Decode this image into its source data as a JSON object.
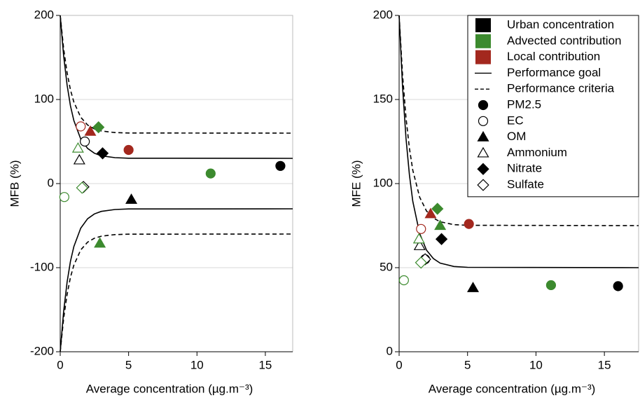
{
  "chart_data": [
    {
      "type": "scatter",
      "ylabel": "MFB (%)",
      "xlabel": "Average concentration (µg.m⁻³)",
      "xlim": [
        0,
        17
      ],
      "ylim": [
        -200,
        200
      ],
      "xticks": [
        0,
        5,
        10,
        15
      ],
      "yticks": [
        -200,
        -100,
        0,
        100,
        200
      ],
      "grid": true,
      "lines": [
        {
          "style": "solid",
          "color": "#000000",
          "x": [
            0,
            0.25,
            0.5,
            0.75,
            1,
            1.5,
            2,
            2.5,
            3,
            4,
            5,
            17
          ],
          "values": [
            200,
            151.8,
            117.3,
            92.5,
            74.8,
            53.0,
            41.8,
            36.1,
            33.1,
            30.8,
            30.2,
            30
          ]
        },
        {
          "style": "solid",
          "color": "#000000",
          "x": [
            0,
            0.25,
            0.5,
            0.75,
            1,
            1.5,
            2,
            2.5,
            3,
            4,
            5,
            17
          ],
          "values": [
            -200,
            -151.8,
            -117.3,
            -92.5,
            -74.8,
            -53.0,
            -41.8,
            -36.1,
            -33.1,
            -30.8,
            -30.2,
            -30
          ]
        },
        {
          "style": "dashed",
          "color": "#000000",
          "x": [
            0,
            0.25,
            0.5,
            0.75,
            1,
            1.5,
            2,
            2.5,
            3,
            4,
            5,
            17
          ],
          "values": [
            200,
            160.3,
            131.9,
            111.5,
            96.9,
            78.9,
            69.7,
            65.0,
            62.6,
            60.7,
            60.2,
            60
          ]
        },
        {
          "style": "dashed",
          "color": "#000000",
          "x": [
            0,
            0.25,
            0.5,
            0.75,
            1,
            1.5,
            2,
            2.5,
            3,
            4,
            5,
            17
          ],
          "values": [
            -200,
            -160.3,
            -131.9,
            -111.5,
            -96.9,
            -78.9,
            -69.7,
            -65.0,
            -62.6,
            -60.7,
            -60.2,
            -60
          ]
        }
      ],
      "series": [
        {
          "marker": "circle",
          "filled": true,
          "x": [
            16.1,
            11,
            5
          ],
          "values": [
            21,
            12,
            40
          ],
          "colors": [
            "#000000",
            "#3c8a2e",
            "#a3281e"
          ]
        },
        {
          "marker": "circle",
          "filled": false,
          "x": [
            1.8,
            0.3,
            1.5
          ],
          "values": [
            50,
            -16,
            68
          ],
          "colors": [
            "#000000",
            "#3c8a2e",
            "#a3281e"
          ]
        },
        {
          "marker": "triangle",
          "filled": true,
          "x": [
            5.2,
            2.9,
            2.2
          ],
          "values": [
            -19,
            -71,
            62
          ],
          "colors": [
            "#000000",
            "#3c8a2e",
            "#a3281e"
          ]
        },
        {
          "marker": "triangle",
          "filled": false,
          "x": [
            1.4,
            1.3
          ],
          "values": [
            28,
            42
          ],
          "colors": [
            "#000000",
            "#3c8a2e"
          ]
        },
        {
          "marker": "diamond",
          "filled": true,
          "x": [
            3.1,
            2.8
          ],
          "values": [
            36,
            67
          ],
          "colors": [
            "#000000",
            "#3c8a2e"
          ]
        },
        {
          "marker": "diamond",
          "filled": false,
          "x": [
            1.7,
            1.6
          ],
          "values": [
            -4,
            -5
          ],
          "colors": [
            "#000000",
            "#3c8a2e"
          ]
        }
      ]
    },
    {
      "type": "scatter",
      "ylabel": "MFE (%)",
      "xlabel": "Average concentration (µg.m⁻³)",
      "xlim": [
        0,
        17.5
      ],
      "ylim": [
        0,
        200
      ],
      "xticks": [
        0,
        5,
        10,
        15
      ],
      "yticks": [
        0,
        50,
        100,
        150,
        200
      ],
      "grid": true,
      "lines": [
        {
          "style": "solid",
          "color": "#000000",
          "x": [
            0,
            0.25,
            0.5,
            0.75,
            1,
            1.5,
            2,
            2.5,
            3,
            4,
            5,
            17.5
          ],
          "values": [
            200,
            157.5,
            127.0,
            105.2,
            89.5,
            70.3,
            60.4,
            55.4,
            52.7,
            50.7,
            50.2,
            50
          ]
        },
        {
          "style": "dashed",
          "color": "#000000",
          "x": [
            0,
            0.25,
            0.5,
            0.75,
            1,
            1.5,
            2,
            2.5,
            3,
            4,
            5,
            17.5
          ],
          "values": [
            200,
            164.6,
            139.2,
            121.0,
            108.0,
            91.9,
            83.7,
            79.5,
            77.3,
            75.6,
            75.2,
            75
          ]
        }
      ],
      "series": [
        {
          "marker": "circle",
          "filled": true,
          "x": [
            16,
            11.1,
            5.1
          ],
          "values": [
            39,
            39.6,
            76
          ],
          "colors": [
            "#000000",
            "#3c8a2e",
            "#a3281e"
          ]
        },
        {
          "marker": "circle",
          "filled": false,
          "x": [
            1.9,
            0.35,
            1.6
          ],
          "values": [
            55,
            42.5,
            73
          ],
          "colors": [
            "#000000",
            "#3c8a2e",
            "#a3281e"
          ]
        },
        {
          "marker": "triangle",
          "filled": true,
          "x": [
            5.4,
            3.0,
            2.3
          ],
          "values": [
            38,
            75,
            82
          ],
          "colors": [
            "#000000",
            "#3c8a2e",
            "#a3281e"
          ]
        },
        {
          "marker": "triangle",
          "filled": false,
          "x": [
            1.5,
            1.45
          ],
          "values": [
            63,
            67
          ],
          "colors": [
            "#000000",
            "#3c8a2e"
          ]
        },
        {
          "marker": "diamond",
          "filled": true,
          "x": [
            3.1,
            2.8
          ],
          "values": [
            67,
            85
          ],
          "colors": [
            "#000000",
            "#3c8a2e"
          ]
        },
        {
          "marker": "diamond",
          "filled": false,
          "x": [
            1.9,
            1.6
          ],
          "values": [
            55,
            53
          ],
          "colors": [
            "#000000",
            "#3c8a2e"
          ]
        }
      ],
      "legend": [
        {
          "label": "Urban concentration",
          "swatch": "#000000"
        },
        {
          "label": "Advected contribution",
          "swatch": "#3c8a2e"
        },
        {
          "label": "Local contribution",
          "swatch": "#a3281e"
        },
        {
          "label": "Performance goal",
          "line": "solid"
        },
        {
          "label": "Performance criteria",
          "line": "dashed"
        },
        {
          "label": "PM2.5",
          "marker": "circle",
          "filled": true
        },
        {
          "label": "EC",
          "marker": "circle",
          "filled": false
        },
        {
          "label": "OM",
          "marker": "triangle",
          "filled": true
        },
        {
          "label": "Ammonium",
          "marker": "triangle",
          "filled": false
        },
        {
          "label": "Nitrate",
          "marker": "diamond",
          "filled": true
        },
        {
          "label": "Sulfate",
          "marker": "diamond",
          "filled": false
        }
      ]
    }
  ]
}
